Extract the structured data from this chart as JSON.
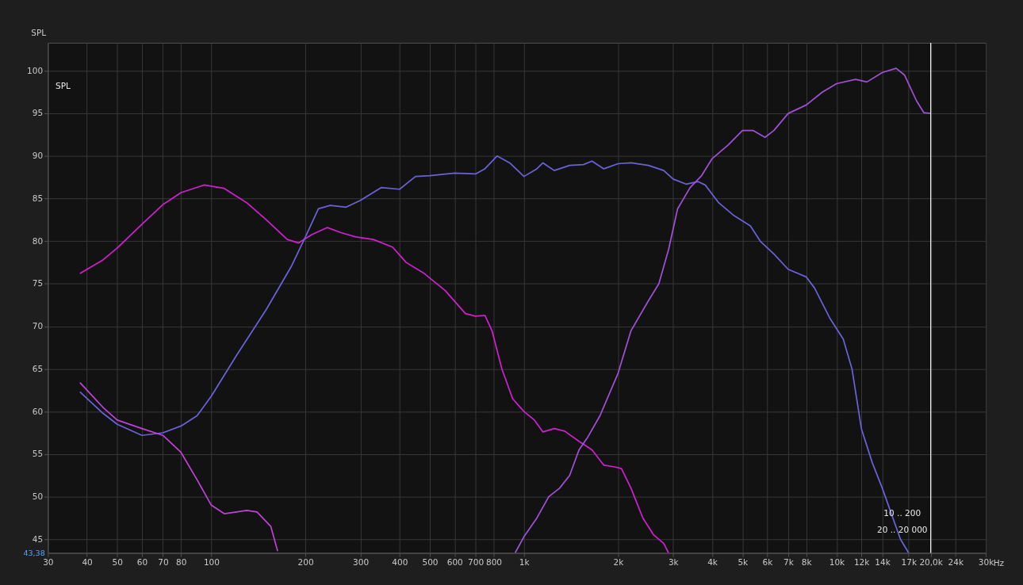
{
  "chart_data": {
    "type": "line",
    "ylabel": "SPL",
    "annotations": [
      "SPL",
      "10 .. 200",
      "20 .. 20 000",
      "43,38"
    ],
    "xlim": [
      30,
      30000
    ],
    "ylim": [
      43.4,
      103.3
    ],
    "log": "x",
    "grid": true,
    "legend": false,
    "line_style": "solid",
    "marker": "none",
    "xticks": [
      30,
      40,
      50,
      60,
      70,
      80,
      100,
      200,
      300,
      400,
      500,
      600,
      700,
      800,
      {
        "value": 1000,
        "label": "1k"
      },
      {
        "value": 2000,
        "label": "2k"
      },
      {
        "value": 3000,
        "label": "3k"
      },
      {
        "value": 4000,
        "label": "4k"
      },
      {
        "value": 5000,
        "label": "5k"
      },
      {
        "value": 6000,
        "label": "6k"
      },
      {
        "value": 7000,
        "label": "7k"
      },
      {
        "value": 8000,
        "label": "8k"
      },
      {
        "value": 10000,
        "label": "10k"
      },
      {
        "value": 12000,
        "label": "12k"
      },
      {
        "value": 14000,
        "label": "14k"
      },
      {
        "value": 17000,
        "label": "17k"
      },
      {
        "value": 20000,
        "label": "20,0k"
      },
      {
        "value": 24000,
        "label": "24k"
      },
      {
        "value": 30000,
        "label": "30k"
      }
    ],
    "xlabel": "Hz",
    "yticks": [
      45,
      50,
      55,
      60,
      65,
      70,
      75,
      80,
      85,
      90,
      95,
      100
    ],
    "ref_lines": [
      {
        "axis": "x",
        "value": 20000,
        "color": "#ffffff"
      }
    ],
    "series": [
      {
        "color": "#d020d0",
        "x": [
          38,
          45,
          50,
          60,
          70,
          80,
          95,
          110,
          130,
          150,
          175,
          190,
          210,
          235,
          260,
          290,
          330,
          380,
          420,
          480,
          560,
          650,
          700,
          750,
          790,
          850,
          920,
          1000,
          1080,
          1150,
          1250,
          1350,
          1500,
          1650,
          1800,
          1950,
          2050,
          2200,
          2400,
          2600,
          2800,
          2900
        ],
        "values": [
          76.2,
          77.8,
          79.2,
          82,
          84.3,
          85.7,
          86.6,
          86.2,
          84.5,
          82.5,
          80.2,
          79.8,
          80.8,
          81.6,
          81,
          80.5,
          80.2,
          79.3,
          77.5,
          76.2,
          74.2,
          71.5,
          71.2,
          71.3,
          69.5,
          65,
          61.5,
          60,
          59,
          57.6,
          58,
          57.7,
          56.5,
          55.5,
          53.7,
          53.5,
          53.3,
          51,
          47.5,
          45.5,
          44.5,
          43.4
        ]
      },
      {
        "color": "#6a62d8",
        "x": [
          38,
          45,
          50,
          60,
          70,
          80,
          90,
          100,
          120,
          150,
          180,
          200,
          220,
          240,
          270,
          300,
          350,
          400,
          450,
          500,
          600,
          700,
          750,
          820,
          900,
          1000,
          1100,
          1150,
          1250,
          1400,
          1550,
          1650,
          1800,
          2000,
          2200,
          2500,
          2800,
          3000,
          3300,
          3600,
          3800,
          4200,
          4700,
          5300,
          5700,
          6300,
          7000,
          8000,
          8500,
          9500,
          10500,
          11200,
          12000,
          13000,
          14000,
          16000,
          17000
        ],
        "values": [
          62.3,
          59.8,
          58.5,
          57.2,
          57.5,
          58.3,
          59.5,
          61.8,
          66.5,
          72,
          77,
          80.5,
          83.8,
          84.2,
          84,
          84.8,
          86.3,
          86.1,
          87.6,
          87.7,
          88,
          87.9,
          88.5,
          90,
          89.2,
          87.6,
          88.5,
          89.2,
          88.3,
          88.9,
          89,
          89.4,
          88.5,
          89.1,
          89.2,
          88.9,
          88.3,
          87.3,
          86.7,
          87,
          86.6,
          84.5,
          83,
          81.8,
          80,
          78.5,
          76.7,
          75.8,
          74.5,
          71,
          68.5,
          65,
          58,
          54,
          51,
          45,
          43.4
        ]
      },
      {
        "color": "#c040d8",
        "x": [
          38,
          45,
          50,
          60,
          70,
          80,
          90,
          100,
          110,
          130,
          140,
          155,
          163
        ],
        "values": [
          63.4,
          60.5,
          59,
          58,
          57.2,
          55.2,
          52,
          49,
          48,
          48.4,
          48.2,
          46.5,
          43.6
        ]
      },
      {
        "color": "#a050d8",
        "x": [
          937,
          1000,
          1100,
          1200,
          1300,
          1400,
          1500,
          1600,
          1750,
          2000,
          2200,
          2500,
          2700,
          2900,
          3100,
          3400,
          3700,
          4000,
          4500,
          5000,
          5400,
          5900,
          6300,
          7000,
          8000,
          9000,
          10000,
          11500,
          12500,
          14000,
          15500,
          16500,
          18000,
          19000,
          20000
        ],
        "values": [
          43.4,
          45.3,
          47.5,
          50,
          51,
          52.5,
          55.5,
          57,
          59.5,
          64.5,
          69.5,
          73,
          75,
          79,
          83.8,
          86.3,
          87.7,
          89.7,
          91.3,
          93,
          93,
          92.2,
          93,
          95,
          96,
          97.5,
          98.5,
          99,
          98.7,
          99.8,
          100.3,
          99.5,
          96.5,
          95.1,
          95
        ]
      }
    ]
  }
}
